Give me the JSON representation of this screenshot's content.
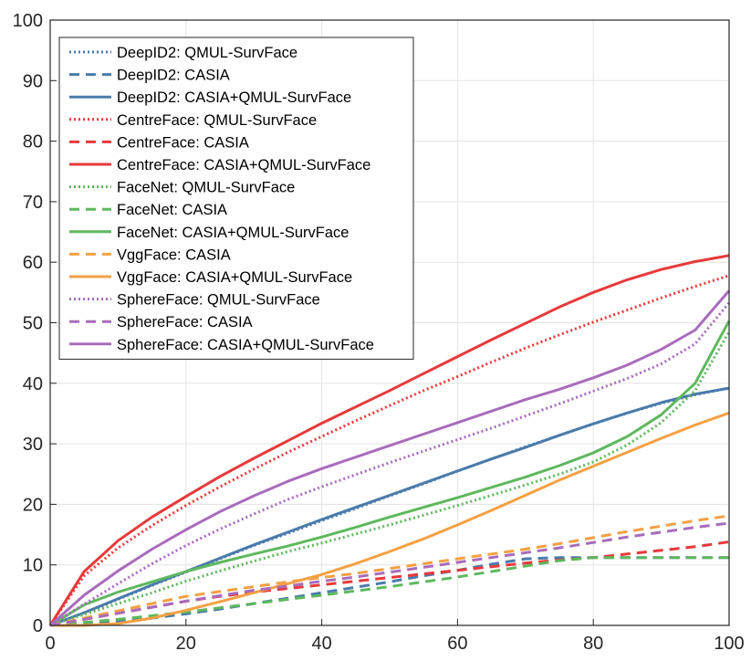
{
  "chart_data": {
    "type": "line",
    "title": "",
    "xlabel": "",
    "ylabel": "",
    "xlim": [
      0,
      100
    ],
    "ylim": [
      0,
      100
    ],
    "xticks": [
      0,
      20,
      40,
      60,
      80,
      100
    ],
    "yticks": [
      0,
      10,
      20,
      30,
      40,
      50,
      60,
      70,
      80,
      90,
      100
    ],
    "grid": true,
    "legend_position": "top-left",
    "x": [
      0,
      5,
      10,
      15,
      20,
      25,
      30,
      35,
      40,
      45,
      50,
      55,
      60,
      65,
      70,
      75,
      80,
      85,
      90,
      95,
      100
    ],
    "series": [
      {
        "name": "DeepID2: QMUL-SurvFace",
        "color": "#4a7bab",
        "style": "dotted",
        "values": [
          0,
          2.0,
          4.3,
          6.6,
          8.8,
          11.0,
          13.2,
          15.2,
          17.3,
          19.3,
          21.4,
          23.4,
          25.5,
          27.5,
          29.5,
          31.4,
          33.3,
          35.1,
          36.7,
          38.1,
          39.2
        ]
      },
      {
        "name": "DeepID2: CASIA",
        "color": "#4a7bab",
        "style": "dashed",
        "values": [
          0,
          0.3,
          0.6,
          1.2,
          1.9,
          2.7,
          3.6,
          4.5,
          5.4,
          6.3,
          7.2,
          8.2,
          9.1,
          10.1,
          11.0,
          11.2,
          11.2,
          11.2,
          11.2,
          11.2,
          11.2
        ]
      },
      {
        "name": "DeepID2: CASIA+QMUL-SurvFace",
        "color": "#4a7bab",
        "style": "solid",
        "values": [
          0,
          2.1,
          4.4,
          6.7,
          8.9,
          11.1,
          13.3,
          15.4,
          17.5,
          19.5,
          21.5,
          23.5,
          25.5,
          27.5,
          29.4,
          31.4,
          33.3,
          35.1,
          36.8,
          38.2,
          39.2
        ]
      },
      {
        "name": "CentreFace: QMUL-SurvFace",
        "color": "#e8393a",
        "style": "dotted",
        "values": [
          0,
          8.2,
          12.8,
          16.5,
          19.8,
          22.9,
          25.8,
          28.6,
          31.2,
          33.8,
          36.3,
          38.8,
          41.1,
          43.5,
          45.8,
          48.0,
          50.1,
          52.1,
          54.1,
          56.0,
          57.8
        ]
      },
      {
        "name": "CentreFace: CASIA",
        "color": "#e8393a",
        "style": "dashed",
        "values": [
          0,
          1.0,
          2.0,
          3.0,
          4.0,
          4.8,
          5.5,
          6.1,
          6.7,
          7.3,
          7.9,
          8.5,
          9.1,
          9.7,
          10.3,
          10.8,
          11.2,
          11.8,
          12.4,
          13.0,
          13.8
        ]
      },
      {
        "name": "CentreFace: CASIA+QMUL-SurvFace",
        "color": "#e8393a",
        "style": "solid",
        "values": [
          0,
          8.9,
          14.0,
          17.9,
          21.3,
          24.6,
          27.6,
          30.5,
          33.4,
          36.1,
          38.8,
          41.6,
          44.4,
          47.2,
          49.9,
          52.6,
          55.0,
          57.1,
          58.8,
          60.1,
          61.1
        ]
      },
      {
        "name": "FaceNet: QMUL-SurvFace",
        "color": "#5fb85e",
        "style": "dotted",
        "values": [
          0,
          1.8,
          3.6,
          5.4,
          7.3,
          9.0,
          10.6,
          12.2,
          13.6,
          15.1,
          16.6,
          18.2,
          19.8,
          21.5,
          23.2,
          25.0,
          27.0,
          29.8,
          33.5,
          38.8,
          48.5
        ]
      },
      {
        "name": "FaceNet: CASIA",
        "color": "#5fb85e",
        "style": "dashed",
        "values": [
          0,
          0.5,
          1.0,
          1.6,
          2.2,
          2.9,
          3.6,
          4.3,
          5.0,
          5.7,
          6.4,
          7.2,
          8.0,
          8.9,
          9.8,
          10.7,
          11.2,
          11.2,
          11.2,
          11.2,
          11.2
        ]
      },
      {
        "name": "FaceNet: CASIA+QMUL-SurvFace",
        "color": "#5fb85e",
        "style": "solid",
        "values": [
          0,
          3.4,
          5.5,
          7.2,
          8.9,
          10.4,
          11.8,
          13.1,
          14.6,
          16.2,
          17.9,
          19.5,
          21.1,
          22.8,
          24.5,
          26.4,
          28.5,
          31.2,
          34.8,
          40.0,
          50.3
        ]
      },
      {
        "name": "VggFace: CASIA",
        "color": "#f5a043",
        "style": "dashed",
        "values": [
          0,
          1.2,
          2.4,
          3.6,
          4.8,
          5.6,
          6.4,
          7.2,
          7.9,
          8.6,
          9.4,
          10.2,
          11.0,
          11.8,
          12.6,
          13.5,
          14.5,
          15.5,
          16.4,
          17.3,
          18.1
        ]
      },
      {
        "name": "VggFace: CASIA+QMUL-SurvFace",
        "color": "#f5a043",
        "style": "solid",
        "values": [
          0,
          0,
          0.3,
          1.2,
          2.5,
          3.9,
          5.4,
          6.9,
          8.4,
          10.2,
          12.2,
          14.3,
          16.6,
          19.0,
          21.5,
          24.0,
          26.3,
          28.6,
          30.9,
          33.1,
          35.1
        ]
      },
      {
        "name": "SphereFace: QMUL-SurvFace",
        "color": "#a86cbc",
        "style": "dotted",
        "values": [
          0,
          3.5,
          6.9,
          10.2,
          13.2,
          15.9,
          18.4,
          20.8,
          22.9,
          24.9,
          26.9,
          28.8,
          30.7,
          32.6,
          34.6,
          36.6,
          38.7,
          40.8,
          43.2,
          46.5,
          53.3
        ]
      },
      {
        "name": "SphereFace: CASIA",
        "color": "#a86cbc",
        "style": "dashed",
        "values": [
          0,
          1.0,
          2.0,
          3.0,
          4.0,
          4.9,
          5.8,
          6.5,
          7.3,
          8.0,
          8.8,
          9.6,
          10.4,
          11.2,
          12.0,
          12.8,
          13.7,
          14.6,
          15.4,
          16.2,
          16.9
        ]
      },
      {
        "name": "SphereFace: CASIA+QMUL-SurvFace",
        "color": "#a86cbc",
        "style": "solid",
        "values": [
          0,
          5.0,
          9.0,
          12.6,
          15.8,
          18.8,
          21.4,
          23.8,
          25.9,
          27.8,
          29.7,
          31.6,
          33.5,
          35.4,
          37.3,
          39.0,
          40.9,
          43.0,
          45.6,
          48.8,
          55.3
        ]
      }
    ]
  }
}
